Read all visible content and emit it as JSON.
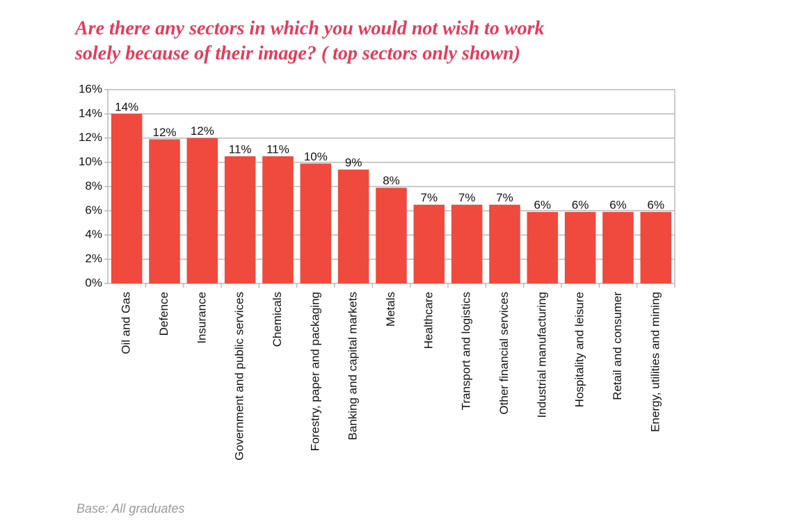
{
  "chart_data": {
    "type": "bar",
    "title": [
      "Are there any sectors in which you would not wish to work",
      "solely because of their image? ( top sectors only shown)"
    ],
    "categories": [
      "Oil and Gas",
      "Defence",
      "Insurance",
      "Government and public services",
      "Chemicals",
      "Forestry, paper and packaging",
      "Banking and capital markets",
      "Metals",
      "Healthcare",
      "Transport and logistics",
      "Other financial services",
      "Industrial manufacturing",
      "Hospitality and leisure",
      "Retail and consumer",
      "Energy, utilities and mining"
    ],
    "values": [
      14,
      11.9,
      12,
      10.5,
      10.5,
      9.9,
      9.4,
      7.9,
      6.5,
      6.5,
      6.5,
      5.9,
      5.9,
      5.9,
      5.9
    ],
    "value_labels": [
      "14%",
      "12%",
      "12%",
      "11%",
      "11%",
      "10%",
      "9%",
      "8%",
      "7%",
      "7%",
      "7%",
      "6%",
      "6%",
      "6%",
      "6%"
    ],
    "color": "#ef4a3d",
    "ylim": [
      0,
      16
    ],
    "yticks": [
      {
        "value": 0,
        "label": "0%"
      },
      {
        "value": 2,
        "label": "2%"
      },
      {
        "value": 4,
        "label": "4%"
      },
      {
        "value": 6,
        "label": "6%"
      },
      {
        "value": 8,
        "label": "8%"
      },
      {
        "value": 10,
        "label": "10%"
      },
      {
        "value": 12,
        "label": "12%"
      },
      {
        "value": 14,
        "label": "14%"
      },
      {
        "value": 16,
        "label": "16%"
      }
    ],
    "grid": true,
    "note": "Base: All graduates"
  }
}
